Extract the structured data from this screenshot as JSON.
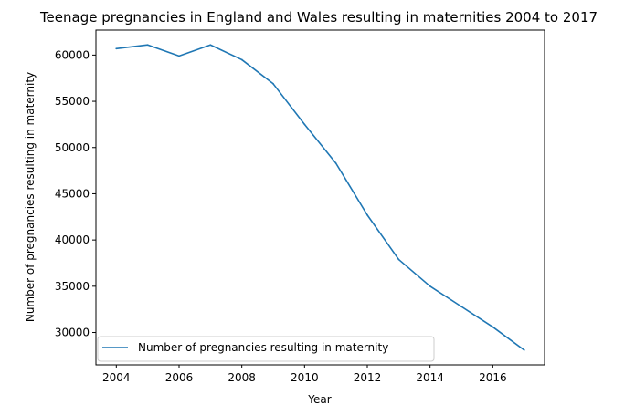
{
  "chart_data": {
    "type": "line",
    "title": "Teenage pregnancies in England and Wales resulting in maternities 2004 to 2017",
    "xlabel": "Year",
    "ylabel": "Number of pregnancies resulting in maternity",
    "xlim": [
      2003.35,
      2017.65
    ],
    "ylim": [
      26500,
      62700
    ],
    "xticks": [
      2004,
      2006,
      2008,
      2010,
      2012,
      2014,
      2016
    ],
    "yticks": [
      30000,
      35000,
      40000,
      45000,
      50000,
      55000,
      60000
    ],
    "grid": false,
    "legend_position": "lower-left",
    "series": [
      {
        "name": "Number of pregnancies resulting in maternity",
        "color": "#1f77b4",
        "x": [
          2004,
          2005,
          2006,
          2007,
          2008,
          2009,
          2010,
          2011,
          2012,
          2013,
          2014,
          2015,
          2016,
          2017
        ],
        "y": [
          60700,
          61100,
          59900,
          61100,
          59500,
          56900,
          52500,
          48300,
          42700,
          37900,
          35000,
          32800,
          30600,
          28100
        ]
      }
    ]
  }
}
